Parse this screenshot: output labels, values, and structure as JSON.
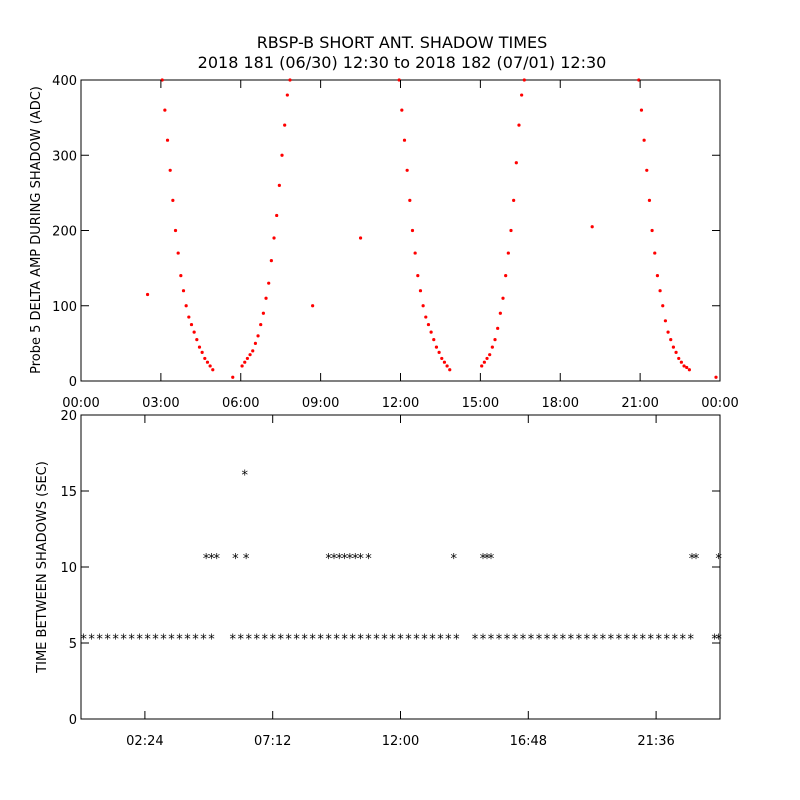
{
  "title_line1": "RBSP-B SHORT ANT. SHADOW TIMES",
  "title_line2": "2018 181 (06/30) 12:30 to 2018 182 (07/01) 12:30",
  "colors": {
    "top_points": "#ff0000",
    "bottom_points": "#000000",
    "axes": "#000000"
  },
  "chart_data": [
    {
      "type": "scatter",
      "ylabel": "Probe 5 DELTA AMP DURING SHADOW (ADC)",
      "xlabel": "",
      "x_unit": "hours",
      "xlim": [
        0,
        24
      ],
      "ylim": [
        0,
        400
      ],
      "x_ticks": [
        0,
        3,
        6,
        9,
        12,
        15,
        18,
        21,
        24
      ],
      "x_tick_labels": [
        "00:00",
        "03:00",
        "06:00",
        "09:00",
        "12:00",
        "15:00",
        "18:00",
        "21:00",
        "00:00"
      ],
      "y_ticks": [
        0,
        100,
        200,
        300,
        400
      ],
      "y_tick_labels": [
        "0",
        "100",
        "200",
        "300",
        "400"
      ],
      "series": [
        {
          "color": "#ff0000",
          "points": [
            [
              3.05,
              400
            ],
            [
              3.15,
              360
            ],
            [
              3.25,
              320
            ],
            [
              3.35,
              280
            ],
            [
              3.45,
              240
            ],
            [
              3.55,
              200
            ],
            [
              3.65,
              170
            ],
            [
              3.75,
              140
            ],
            [
              3.85,
              120
            ],
            [
              3.95,
              100
            ],
            [
              4.05,
              85
            ],
            [
              4.15,
              75
            ],
            [
              4.25,
              65
            ],
            [
              4.35,
              55
            ],
            [
              4.45,
              45
            ],
            [
              4.55,
              38
            ],
            [
              4.65,
              30
            ],
            [
              4.75,
              25
            ],
            [
              4.85,
              20
            ],
            [
              4.95,
              15
            ],
            [
              6.05,
              20
            ],
            [
              6.15,
              25
            ],
            [
              6.25,
              30
            ],
            [
              6.35,
              35
            ],
            [
              6.45,
              40
            ],
            [
              6.55,
              50
            ],
            [
              6.65,
              60
            ],
            [
              6.75,
              75
            ],
            [
              6.85,
              90
            ],
            [
              6.95,
              110
            ],
            [
              7.05,
              130
            ],
            [
              7.15,
              160
            ],
            [
              7.25,
              190
            ],
            [
              7.35,
              220
            ],
            [
              7.45,
              260
            ],
            [
              7.55,
              300
            ],
            [
              7.65,
              340
            ],
            [
              7.75,
              380
            ],
            [
              7.85,
              400
            ],
            [
              11.95,
              400
            ],
            [
              12.05,
              360
            ],
            [
              12.15,
              320
            ],
            [
              12.25,
              280
            ],
            [
              12.35,
              240
            ],
            [
              12.45,
              200
            ],
            [
              12.55,
              170
            ],
            [
              12.65,
              140
            ],
            [
              12.75,
              120
            ],
            [
              12.85,
              100
            ],
            [
              12.95,
              85
            ],
            [
              13.05,
              75
            ],
            [
              13.15,
              65
            ],
            [
              13.25,
              55
            ],
            [
              13.35,
              45
            ],
            [
              13.45,
              38
            ],
            [
              13.55,
              30
            ],
            [
              13.65,
              25
            ],
            [
              13.75,
              20
            ],
            [
              13.85,
              15
            ],
            [
              15.05,
              20
            ],
            [
              15.15,
              25
            ],
            [
              15.25,
              30
            ],
            [
              15.35,
              35
            ],
            [
              15.45,
              45
            ],
            [
              15.55,
              55
            ],
            [
              15.65,
              70
            ],
            [
              15.75,
              90
            ],
            [
              15.85,
              110
            ],
            [
              15.95,
              140
            ],
            [
              16.05,
              170
            ],
            [
              16.15,
              200
            ],
            [
              16.25,
              240
            ],
            [
              16.35,
              290
            ],
            [
              16.45,
              340
            ],
            [
              16.55,
              380
            ],
            [
              16.65,
              400
            ],
            [
              20.95,
              400
            ],
            [
              21.05,
              360
            ],
            [
              21.15,
              320
            ],
            [
              21.25,
              280
            ],
            [
              21.35,
              240
            ],
            [
              21.45,
              200
            ],
            [
              21.55,
              170
            ],
            [
              21.65,
              140
            ],
            [
              21.75,
              120
            ],
            [
              21.85,
              100
            ],
            [
              21.95,
              80
            ],
            [
              22.05,
              65
            ],
            [
              22.15,
              55
            ],
            [
              22.25,
              45
            ],
            [
              22.35,
              38
            ],
            [
              22.45,
              30
            ],
            [
              22.55,
              25
            ],
            [
              22.65,
              20
            ],
            [
              22.75,
              18
            ],
            [
              22.85,
              15
            ],
            [
              2.5,
              115
            ],
            [
              8.7,
              100
            ],
            [
              10.5,
              190
            ],
            [
              19.2,
              205
            ],
            [
              23.85,
              5
            ],
            [
              5.7,
              5
            ]
          ]
        }
      ]
    },
    {
      "type": "scatter",
      "ylabel": "TIME BETWEEN SHADOWS (SEC)",
      "xlabel": "",
      "x_unit": "hours",
      "xlim": [
        0,
        24
      ],
      "ylim": [
        0,
        20
      ],
      "x_ticks": [
        2.4,
        7.2,
        12,
        16.8,
        21.6
      ],
      "x_tick_labels": [
        "02:24",
        "07:12",
        "12:00",
        "16:48",
        "21:36"
      ],
      "y_ticks": [
        0,
        5,
        10,
        15,
        20
      ],
      "y_tick_labels": [
        "0",
        "5",
        "10",
        "15",
        "20"
      ],
      "series": [
        {
          "color": "#000000",
          "points": [
            [
              0.1,
              5.3
            ],
            [
              0.4,
              5.3
            ],
            [
              0.7,
              5.3
            ],
            [
              1.0,
              5.3
            ],
            [
              1.3,
              5.3
            ],
            [
              1.6,
              5.3
            ],
            [
              1.9,
              5.3
            ],
            [
              2.2,
              5.3
            ],
            [
              2.5,
              5.3
            ],
            [
              2.8,
              5.3
            ],
            [
              3.1,
              5.3
            ],
            [
              3.4,
              5.3
            ],
            [
              3.7,
              5.3
            ],
            [
              4.0,
              5.3
            ],
            [
              4.3,
              5.3
            ],
            [
              4.6,
              5.3
            ],
            [
              4.9,
              5.3
            ],
            [
              5.7,
              5.3
            ],
            [
              6.0,
              5.3
            ],
            [
              6.3,
              5.3
            ],
            [
              6.6,
              5.3
            ],
            [
              6.9,
              5.3
            ],
            [
              7.2,
              5.3
            ],
            [
              7.5,
              5.3
            ],
            [
              7.8,
              5.3
            ],
            [
              8.1,
              5.3
            ],
            [
              8.4,
              5.3
            ],
            [
              8.7,
              5.3
            ],
            [
              9.0,
              5.3
            ],
            [
              9.3,
              5.3
            ],
            [
              9.6,
              5.3
            ],
            [
              9.9,
              5.3
            ],
            [
              10.2,
              5.3
            ],
            [
              10.5,
              5.3
            ],
            [
              10.8,
              5.3
            ],
            [
              11.1,
              5.3
            ],
            [
              11.4,
              5.3
            ],
            [
              11.7,
              5.3
            ],
            [
              12.0,
              5.3
            ],
            [
              12.3,
              5.3
            ],
            [
              12.6,
              5.3
            ],
            [
              12.9,
              5.3
            ],
            [
              13.2,
              5.3
            ],
            [
              13.5,
              5.3
            ],
            [
              13.8,
              5.3
            ],
            [
              14.1,
              5.3
            ],
            [
              14.8,
              5.3
            ],
            [
              15.1,
              5.3
            ],
            [
              15.4,
              5.3
            ],
            [
              15.7,
              5.3
            ],
            [
              16.0,
              5.3
            ],
            [
              16.3,
              5.3
            ],
            [
              16.6,
              5.3
            ],
            [
              16.9,
              5.3
            ],
            [
              17.2,
              5.3
            ],
            [
              17.5,
              5.3
            ],
            [
              17.8,
              5.3
            ],
            [
              18.1,
              5.3
            ],
            [
              18.4,
              5.3
            ],
            [
              18.7,
              5.3
            ],
            [
              19.0,
              5.3
            ],
            [
              19.3,
              5.3
            ],
            [
              19.6,
              5.3
            ],
            [
              19.9,
              5.3
            ],
            [
              20.2,
              5.3
            ],
            [
              20.5,
              5.3
            ],
            [
              20.8,
              5.3
            ],
            [
              21.1,
              5.3
            ],
            [
              21.4,
              5.3
            ],
            [
              21.7,
              5.3
            ],
            [
              22.0,
              5.3
            ],
            [
              22.3,
              5.3
            ],
            [
              22.6,
              5.3
            ],
            [
              22.9,
              5.3
            ],
            [
              23.8,
              5.3
            ],
            [
              23.95,
              5.3
            ],
            [
              4.7,
              10.6
            ],
            [
              4.9,
              10.6
            ],
            [
              5.1,
              10.6
            ],
            [
              5.8,
              10.6
            ],
            [
              6.2,
              10.6
            ],
            [
              9.3,
              10.6
            ],
            [
              9.5,
              10.6
            ],
            [
              9.7,
              10.6
            ],
            [
              9.9,
              10.6
            ],
            [
              10.1,
              10.6
            ],
            [
              10.3,
              10.6
            ],
            [
              10.5,
              10.6
            ],
            [
              10.8,
              10.6
            ],
            [
              14.0,
              10.6
            ],
            [
              15.1,
              10.6
            ],
            [
              15.25,
              10.6
            ],
            [
              15.4,
              10.6
            ],
            [
              22.95,
              10.6
            ],
            [
              23.1,
              10.6
            ],
            [
              23.95,
              10.6
            ],
            [
              6.15,
              16.1
            ]
          ]
        }
      ]
    }
  ]
}
